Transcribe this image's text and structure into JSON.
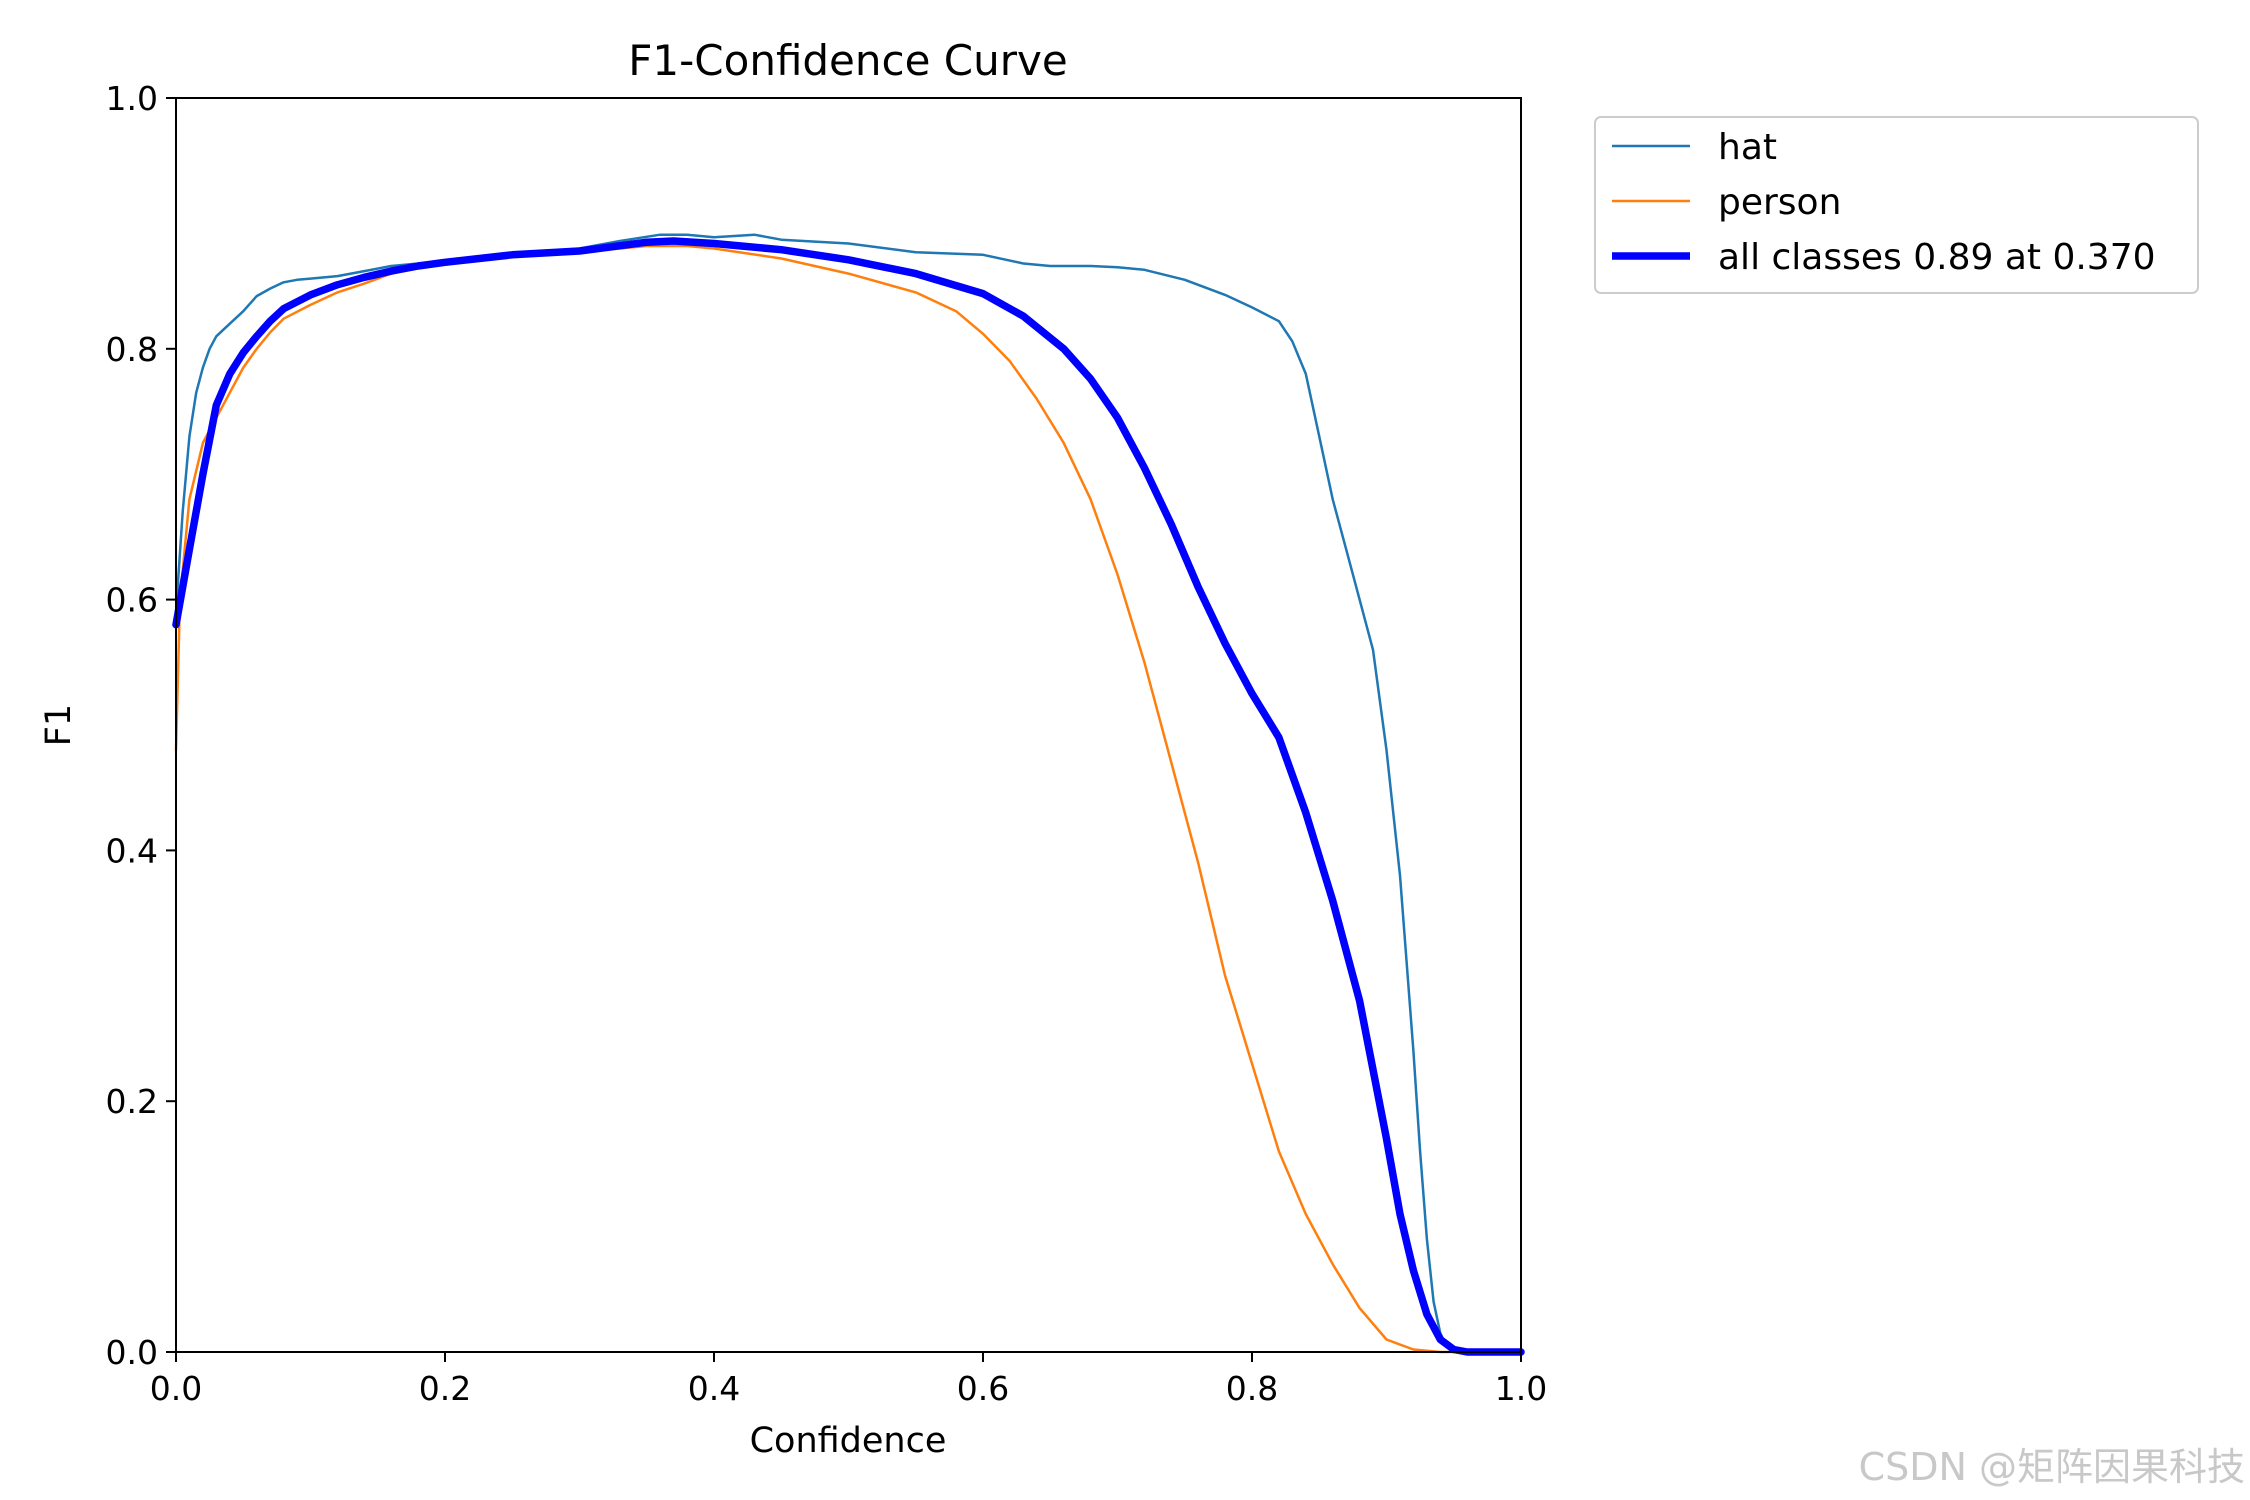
{
  "chart_data": {
    "type": "line",
    "title": "F1-Confidence Curve",
    "xlabel": "Confidence",
    "ylabel": "F1",
    "xlim": [
      0,
      1
    ],
    "ylim": [
      0,
      1
    ],
    "xticks": [
      "0.0",
      "0.2",
      "0.4",
      "0.6",
      "0.8",
      "1.0"
    ],
    "yticks": [
      "0.0",
      "0.2",
      "0.4",
      "0.6",
      "0.8",
      "1.0"
    ],
    "grid": false,
    "legend_position": "outside-top-right",
    "series": [
      {
        "name": "hat",
        "color": "#1f77b4",
        "points": [
          [
            0.0,
            0.59
          ],
          [
            0.005,
            0.67
          ],
          [
            0.01,
            0.73
          ],
          [
            0.015,
            0.765
          ],
          [
            0.02,
            0.785
          ],
          [
            0.025,
            0.8
          ],
          [
            0.03,
            0.81
          ],
          [
            0.04,
            0.82
          ],
          [
            0.05,
            0.83
          ],
          [
            0.06,
            0.842
          ],
          [
            0.07,
            0.848
          ],
          [
            0.08,
            0.853
          ],
          [
            0.09,
            0.855
          ],
          [
            0.1,
            0.856
          ],
          [
            0.12,
            0.858
          ],
          [
            0.14,
            0.862
          ],
          [
            0.16,
            0.866
          ],
          [
            0.18,
            0.868
          ],
          [
            0.2,
            0.87
          ],
          [
            0.25,
            0.876
          ],
          [
            0.3,
            0.88
          ],
          [
            0.33,
            0.886
          ],
          [
            0.36,
            0.891
          ],
          [
            0.38,
            0.891
          ],
          [
            0.4,
            0.889
          ],
          [
            0.43,
            0.891
          ],
          [
            0.45,
            0.887
          ],
          [
            0.5,
            0.884
          ],
          [
            0.55,
            0.877
          ],
          [
            0.6,
            0.875
          ],
          [
            0.63,
            0.868
          ],
          [
            0.65,
            0.866
          ],
          [
            0.68,
            0.866
          ],
          [
            0.7,
            0.865
          ],
          [
            0.72,
            0.863
          ],
          [
            0.75,
            0.855
          ],
          [
            0.78,
            0.843
          ],
          [
            0.8,
            0.833
          ],
          [
            0.82,
            0.822
          ],
          [
            0.83,
            0.806
          ],
          [
            0.84,
            0.78
          ],
          [
            0.85,
            0.73
          ],
          [
            0.86,
            0.68
          ],
          [
            0.87,
            0.64
          ],
          [
            0.88,
            0.6
          ],
          [
            0.89,
            0.56
          ],
          [
            0.9,
            0.48
          ],
          [
            0.91,
            0.38
          ],
          [
            0.92,
            0.24
          ],
          [
            0.925,
            0.16
          ],
          [
            0.93,
            0.09
          ],
          [
            0.935,
            0.04
          ],
          [
            0.94,
            0.015
          ],
          [
            0.945,
            0.004
          ],
          [
            0.95,
            0.0
          ],
          [
            1.0,
            0.0
          ]
        ]
      },
      {
        "name": "person",
        "color": "#ff7f0e",
        "points": [
          [
            0.0,
            0.48
          ],
          [
            0.003,
            0.6
          ],
          [
            0.01,
            0.68
          ],
          [
            0.02,
            0.725
          ],
          [
            0.03,
            0.745
          ],
          [
            0.04,
            0.765
          ],
          [
            0.05,
            0.785
          ],
          [
            0.06,
            0.8
          ],
          [
            0.07,
            0.813
          ],
          [
            0.08,
            0.824
          ],
          [
            0.1,
            0.835
          ],
          [
            0.12,
            0.845
          ],
          [
            0.14,
            0.852
          ],
          [
            0.16,
            0.86
          ],
          [
            0.18,
            0.865
          ],
          [
            0.2,
            0.868
          ],
          [
            0.25,
            0.875
          ],
          [
            0.3,
            0.877
          ],
          [
            0.35,
            0.882
          ],
          [
            0.38,
            0.882
          ],
          [
            0.4,
            0.88
          ],
          [
            0.45,
            0.872
          ],
          [
            0.5,
            0.86
          ],
          [
            0.55,
            0.845
          ],
          [
            0.58,
            0.83
          ],
          [
            0.6,
            0.812
          ],
          [
            0.62,
            0.79
          ],
          [
            0.64,
            0.76
          ],
          [
            0.66,
            0.725
          ],
          [
            0.68,
            0.68
          ],
          [
            0.7,
            0.62
          ],
          [
            0.72,
            0.55
          ],
          [
            0.74,
            0.47
          ],
          [
            0.76,
            0.39
          ],
          [
            0.78,
            0.3
          ],
          [
            0.8,
            0.23
          ],
          [
            0.82,
            0.16
          ],
          [
            0.84,
            0.11
          ],
          [
            0.86,
            0.07
          ],
          [
            0.88,
            0.035
          ],
          [
            0.9,
            0.01
          ],
          [
            0.92,
            0.002
          ],
          [
            0.94,
            0.0
          ],
          [
            1.0,
            0.0
          ]
        ]
      },
      {
        "name": "all classes 0.89 at 0.370",
        "color": "#0000ff",
        "points": [
          [
            0.0,
            0.58
          ],
          [
            0.01,
            0.64
          ],
          [
            0.02,
            0.7
          ],
          [
            0.03,
            0.755
          ],
          [
            0.04,
            0.78
          ],
          [
            0.05,
            0.797
          ],
          [
            0.06,
            0.81
          ],
          [
            0.07,
            0.822
          ],
          [
            0.08,
            0.832
          ],
          [
            0.1,
            0.843
          ],
          [
            0.12,
            0.851
          ],
          [
            0.14,
            0.857
          ],
          [
            0.16,
            0.862
          ],
          [
            0.18,
            0.866
          ],
          [
            0.2,
            0.869
          ],
          [
            0.25,
            0.875
          ],
          [
            0.3,
            0.878
          ],
          [
            0.35,
            0.885
          ],
          [
            0.37,
            0.886
          ],
          [
            0.4,
            0.884
          ],
          [
            0.45,
            0.879
          ],
          [
            0.5,
            0.871
          ],
          [
            0.55,
            0.86
          ],
          [
            0.6,
            0.844
          ],
          [
            0.63,
            0.826
          ],
          [
            0.66,
            0.8
          ],
          [
            0.68,
            0.776
          ],
          [
            0.7,
            0.745
          ],
          [
            0.72,
            0.705
          ],
          [
            0.74,
            0.66
          ],
          [
            0.76,
            0.61
          ],
          [
            0.78,
            0.565
          ],
          [
            0.8,
            0.525
          ],
          [
            0.82,
            0.49
          ],
          [
            0.84,
            0.43
          ],
          [
            0.86,
            0.36
          ],
          [
            0.88,
            0.28
          ],
          [
            0.9,
            0.17
          ],
          [
            0.91,
            0.11
          ],
          [
            0.92,
            0.065
          ],
          [
            0.93,
            0.03
          ],
          [
            0.94,
            0.01
          ],
          [
            0.95,
            0.002
          ],
          [
            0.96,
            0.0
          ],
          [
            1.0,
            0.0
          ]
        ]
      }
    ]
  },
  "watermark": "CSDN @矩阵因果科技"
}
